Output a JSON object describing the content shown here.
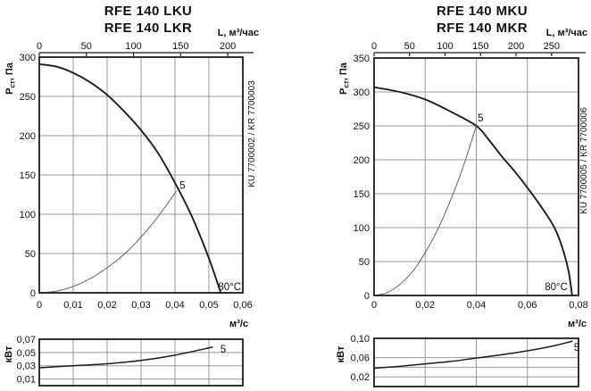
{
  "panels": [
    {
      "title_lines": [
        "RFE 140 LKU",
        "RFE 140 LKR"
      ],
      "side_code": "KU 7700002 / KR 7700003",
      "main_chart": 0,
      "power_chart": 1
    },
    {
      "title_lines": [
        "RFE 140 MKU",
        "RFE 140 MKR"
      ],
      "side_code": "KU 7700005 / KR 7700006",
      "main_chart": 2,
      "power_chart": 3
    }
  ],
  "chart_data": [
    {
      "id": "rfe-140-lku-lkr-pressure",
      "type": "line",
      "title": "RFE 140 LKU / RFE 140 LKR",
      "grid": true,
      "x_axis_bottom": {
        "label": "м³/с",
        "range": [
          0,
          0.06
        ],
        "tick_values": [
          0,
          0.01,
          0.02,
          0.03,
          0.04,
          0.05,
          0.06
        ],
        "tick_labels": [
          "0",
          "0,01",
          "0,02",
          "0,03",
          "0,04",
          "0,05",
          "0,06"
        ]
      },
      "x_axis_top": {
        "label": "L, м³/час",
        "range": [
          0,
          216
        ],
        "tick_values": [
          0,
          50,
          100,
          150,
          200
        ],
        "tick_labels": [
          "0",
          "50",
          "100",
          "150",
          "200"
        ]
      },
      "y_axis": {
        "label": "Pст, Па",
        "label_parts": {
          "base": "P",
          "sub": "ст",
          "rest": ", Па"
        },
        "range": [
          0,
          300
        ],
        "tick_values": [
          0,
          50,
          100,
          150,
          200,
          250,
          300
        ],
        "tick_labels": [
          "0",
          "50",
          "100",
          "150",
          "200",
          "250",
          "300"
        ]
      },
      "series": [
        {
          "name": "system-resistance-curve",
          "points": [
            [
              0,
              0
            ],
            [
              0.005,
              2
            ],
            [
              0.01,
              8
            ],
            [
              0.015,
              18
            ],
            [
              0.02,
              32
            ],
            [
              0.025,
              49
            ],
            [
              0.03,
              71
            ],
            [
              0.035,
              97
            ],
            [
              0.0405,
              130
            ]
          ]
        },
        {
          "name": "fan-curve-speed-5",
          "points": [
            [
              0,
              291
            ],
            [
              0.005,
              288
            ],
            [
              0.01,
              280
            ],
            [
              0.015,
              268
            ],
            [
              0.02,
              252
            ],
            [
              0.025,
              231
            ],
            [
              0.03,
              207
            ],
            [
              0.035,
              178
            ],
            [
              0.04,
              140
            ],
            [
              0.045,
              97
            ],
            [
              0.05,
              44
            ],
            [
              0.0535,
              0
            ]
          ]
        }
      ],
      "annotations": [
        {
          "text": "5",
          "x": 0.0422,
          "y": 137,
          "anchor": "middle"
        },
        {
          "text": "80°C",
          "x": 0.0595,
          "y": 8,
          "anchor": "end"
        }
      ]
    },
    {
      "id": "rfe-140-lku-lkr-power",
      "type": "line",
      "x_axis": {
        "range": [
          0,
          0.06
        ],
        "grid_values": [
          0.01,
          0.02,
          0.03,
          0.04,
          0.05
        ]
      },
      "y_axis": {
        "label": "кВт",
        "range": [
          0,
          0.07
        ],
        "tick_values": [
          0.07,
          0.05,
          0.03,
          0.01
        ],
        "tick_labels": [
          "0,07",
          "0,05",
          "0,03",
          "0,01"
        ],
        "grid_values": [
          0.05,
          0.03,
          0.01
        ]
      },
      "series": [
        {
          "name": "power-curve-speed-5",
          "points": [
            [
              0,
              0.027
            ],
            [
              0.01,
              0.03
            ],
            [
              0.02,
              0.033
            ],
            [
              0.03,
              0.038
            ],
            [
              0.04,
              0.046
            ],
            [
              0.051,
              0.058
            ]
          ]
        }
      ],
      "annotations": [
        {
          "text": "5",
          "x": 0.0542,
          "y": 0.0552,
          "anchor": "middle"
        }
      ]
    },
    {
      "id": "rfe-140-mku-mkr-pressure",
      "type": "line",
      "title": "RFE 140 MKU / RFE 140 MKR",
      "grid": true,
      "x_axis_bottom": {
        "label": "м³/с",
        "range": [
          0,
          0.08
        ],
        "tick_values": [
          0,
          0.02,
          0.04,
          0.06,
          0.08
        ],
        "tick_labels": [
          "0",
          "0,02",
          "0,04",
          "0,06",
          "0,08"
        ]
      },
      "x_axis_top": {
        "label": "L, м³/час",
        "range": [
          0,
          288
        ],
        "tick_values": [
          0,
          50,
          100,
          150,
          200,
          250
        ],
        "tick_labels": [
          "0",
          "50",
          "100",
          "150",
          "200",
          "250"
        ]
      },
      "y_axis": {
        "label": "Pст, Па",
        "label_parts": {
          "base": "P",
          "sub": "ст",
          "rest": ", Па"
        },
        "range": [
          0,
          350
        ],
        "tick_values": [
          0,
          50,
          100,
          150,
          200,
          250,
          300,
          350
        ],
        "tick_labels": [
          "0",
          "50",
          "100",
          "150",
          "200",
          "250",
          "300",
          "350"
        ]
      },
      "series": [
        {
          "name": "system-resistance-curve",
          "points": [
            [
              0,
              0
            ],
            [
              0.005,
              4
            ],
            [
              0.01,
              16
            ],
            [
              0.015,
              35
            ],
            [
              0.02,
              63
            ],
            [
              0.025,
              98
            ],
            [
              0.03,
              141
            ],
            [
              0.035,
              191
            ],
            [
              0.04,
              250
            ]
          ]
        },
        {
          "name": "fan-curve-speed-5",
          "points": [
            [
              0,
              307
            ],
            [
              0.01,
              300
            ],
            [
              0.02,
              289
            ],
            [
              0.03,
              271
            ],
            [
              0.04,
              250
            ],
            [
              0.045,
              229
            ],
            [
              0.05,
              205
            ],
            [
              0.055,
              183
            ],
            [
              0.06,
              159
            ],
            [
              0.065,
              133
            ],
            [
              0.07,
              104
            ],
            [
              0.073,
              78
            ],
            [
              0.076,
              38
            ],
            [
              0.0775,
              0
            ]
          ]
        }
      ],
      "annotations": [
        {
          "text": "5",
          "x": 0.0417,
          "y": 262,
          "anchor": "middle"
        },
        {
          "text": "80°C",
          "x": 0.0758,
          "y": 13,
          "anchor": "end"
        }
      ]
    },
    {
      "id": "rfe-140-mku-mkr-power",
      "type": "line",
      "x_axis": {
        "range": [
          0,
          0.08
        ],
        "grid_values": [
          0.02,
          0.04,
          0.06
        ]
      },
      "y_axis": {
        "label": "кВт",
        "range": [
          0,
          0.1
        ],
        "tick_values": [
          0.1,
          0.06,
          0.02
        ],
        "tick_labels": [
          "0,10",
          "0,06",
          "0,02"
        ],
        "grid_values": [
          0.06,
          0.04,
          0.02
        ]
      },
      "series": [
        {
          "name": "power-curve-speed-5",
          "points": [
            [
              0,
              0.038
            ],
            [
              0.01,
              0.042
            ],
            [
              0.02,
              0.047
            ],
            [
              0.03,
              0.052
            ],
            [
              0.04,
              0.059
            ],
            [
              0.05,
              0.066
            ],
            [
              0.06,
              0.074
            ],
            [
              0.07,
              0.084
            ],
            [
              0.0775,
              0.094
            ]
          ]
        }
      ],
      "annotations": [
        {
          "text": "5",
          "x": 0.0793,
          "y": 0.0815,
          "anchor": "middle"
        }
      ]
    }
  ],
  "colors": {
    "background": "#ffffff",
    "curve": "#1c1c1c",
    "grid": "#999999",
    "text": "#111111"
  }
}
